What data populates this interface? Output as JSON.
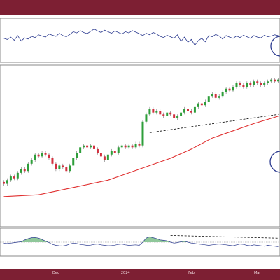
{
  "colors": {
    "frame": "#7d1f33",
    "up_candle": "#2e9e3a",
    "down_candle": "#d22f3e",
    "moving_average": "#e03030",
    "oscillator": "#2b3a8f",
    "oscillator_fill": "#8fc79a",
    "trendline": "#000000",
    "circle_marker": "#2b3a8f"
  },
  "chart_data": {
    "type": "candlestick",
    "x_tick_labels": [
      "Dec",
      "2024",
      "Feb",
      "Mar"
    ],
    "x_ticks_at_candle": [
      15,
      35,
      54,
      73
    ],
    "candles": [
      [
        8,
        7
      ],
      [
        7,
        9
      ],
      [
        9,
        11
      ],
      [
        11,
        10
      ],
      [
        10,
        13
      ],
      [
        13,
        15
      ],
      [
        15,
        14
      ],
      [
        14,
        18
      ],
      [
        18,
        20
      ],
      [
        20,
        23
      ],
      [
        23,
        22
      ],
      [
        22,
        24
      ],
      [
        24,
        23
      ],
      [
        23,
        21
      ],
      [
        21,
        18
      ],
      [
        18,
        15
      ],
      [
        15,
        17
      ],
      [
        17,
        16
      ],
      [
        16,
        14
      ],
      [
        14,
        17
      ],
      [
        17,
        21
      ],
      [
        21,
        24
      ],
      [
        24,
        27
      ],
      [
        27,
        28
      ],
      [
        28,
        27
      ],
      [
        27,
        28
      ],
      [
        28,
        26
      ],
      [
        26,
        24
      ],
      [
        24,
        22
      ],
      [
        22,
        20
      ],
      [
        20,
        23
      ],
      [
        23,
        25
      ],
      [
        25,
        24
      ],
      [
        24,
        27
      ],
      [
        27,
        28
      ],
      [
        28,
        27
      ],
      [
        27,
        28
      ],
      [
        28,
        27
      ],
      [
        27,
        29
      ],
      [
        29,
        28
      ],
      [
        28,
        41
      ],
      [
        41,
        45
      ],
      [
        45,
        48
      ],
      [
        48,
        46
      ],
      [
        46,
        47
      ],
      [
        47,
        45
      ],
      [
        45,
        44
      ],
      [
        44,
        46
      ],
      [
        46,
        45
      ],
      [
        45,
        43
      ],
      [
        43,
        44
      ],
      [
        44,
        46
      ],
      [
        46,
        48
      ],
      [
        48,
        47
      ],
      [
        47,
        46
      ],
      [
        46,
        49
      ],
      [
        49,
        51
      ],
      [
        51,
        50
      ],
      [
        50,
        52
      ],
      [
        52,
        55
      ],
      [
        55,
        56
      ],
      [
        56,
        54
      ],
      [
        54,
        55
      ],
      [
        55,
        57
      ],
      [
        57,
        59
      ],
      [
        59,
        58
      ],
      [
        58,
        60
      ],
      [
        60,
        62
      ],
      [
        62,
        61
      ],
      [
        61,
        60
      ],
      [
        60,
        62
      ],
      [
        62,
        61
      ],
      [
        61,
        63
      ],
      [
        63,
        62
      ],
      [
        62,
        61
      ],
      [
        61,
        62
      ],
      [
        62,
        63
      ],
      [
        63,
        64
      ],
      [
        64,
        63
      ],
      [
        63,
        64
      ]
    ],
    "moving_average": [
      [
        0,
        0
      ],
      [
        10,
        1
      ],
      [
        20,
        5
      ],
      [
        30,
        9
      ],
      [
        36,
        13
      ],
      [
        42,
        17
      ],
      [
        48,
        21
      ],
      [
        54,
        26
      ],
      [
        60,
        32
      ],
      [
        66,
        36
      ],
      [
        72,
        40
      ],
      [
        79,
        44
      ]
    ],
    "trendline": [
      [
        42,
        35
      ],
      [
        79,
        45
      ]
    ],
    "oscillator": [
      55,
      52,
      58,
      50,
      62,
      48,
      56,
      53,
      60,
      57,
      64,
      61,
      58,
      66,
      63,
      60,
      68,
      62,
      59,
      65,
      72,
      69,
      75,
      70,
      67,
      73,
      79,
      74,
      70,
      76,
      72,
      68,
      74,
      70,
      66,
      72,
      69,
      75,
      71,
      67,
      62,
      68,
      64,
      70,
      66,
      60,
      57,
      63,
      59,
      55,
      64,
      47,
      58,
      45,
      52,
      37,
      49,
      55,
      46,
      62,
      59,
      65,
      61,
      53,
      62,
      58,
      55,
      61,
      57,
      63,
      59,
      55,
      62,
      58,
      56,
      63,
      59,
      61,
      64,
      62
    ],
    "lower_oscillator": [
      45,
      44,
      46,
      48,
      50,
      52,
      60,
      66,
      70,
      71,
      68,
      62,
      55,
      48,
      40,
      36,
      34,
      33,
      36,
      42,
      46,
      44,
      40,
      38,
      36,
      37,
      40,
      42,
      38,
      36,
      34,
      35,
      37,
      40,
      42,
      38,
      36,
      37,
      38,
      36,
      50,
      68,
      74,
      70,
      66,
      60,
      58,
      56,
      50,
      46,
      48,
      52,
      54,
      50,
      46,
      44,
      42,
      40,
      38,
      36,
      38,
      40,
      42,
      40,
      38,
      36,
      34,
      38,
      42,
      40,
      36,
      34,
      38,
      36,
      34,
      32,
      36,
      34,
      32,
      30
    ],
    "lower_trendline": [
      [
        48,
        80
      ],
      [
        79,
        68
      ]
    ]
  }
}
